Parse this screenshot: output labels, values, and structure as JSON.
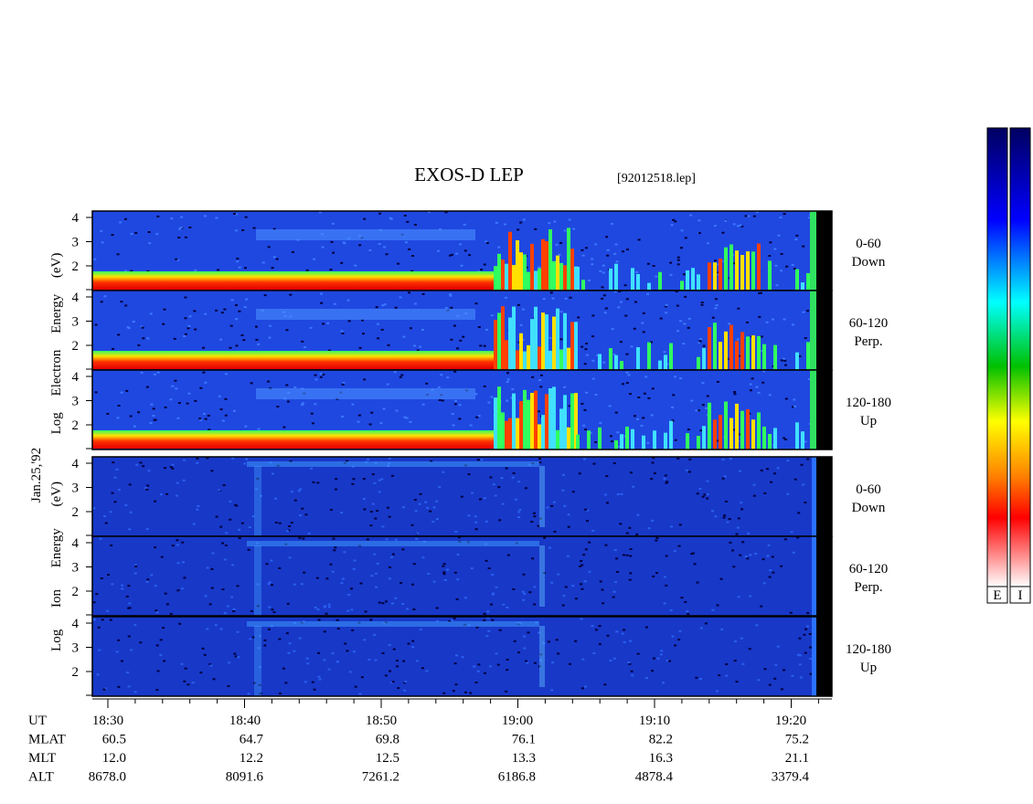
{
  "header": {
    "title": "EXOS-D LEP",
    "file": "[92012518.lep]"
  },
  "axes": {
    "electron_label": "Log Electron Energy (eV)",
    "ion_label": "Log Ion Energy (eV)",
    "date": "Jan.25,'92",
    "energy_ticks": [
      "2",
      "3",
      "4"
    ]
  },
  "electron_panels": [
    {
      "range": "0-60",
      "direction": "Down"
    },
    {
      "range": "60-120",
      "direction": "Perp."
    },
    {
      "range": "120-180",
      "direction": "Up"
    }
  ],
  "ion_panels": [
    {
      "range": "0-60",
      "direction": "Down"
    },
    {
      "range": "60-120",
      "direction": "Perp."
    },
    {
      "range": "120-180",
      "direction": "Up"
    }
  ],
  "time_axis": {
    "rows": [
      {
        "label": "UT",
        "values": [
          "18:30",
          "18:40",
          "18:50",
          "19:00",
          "19:10",
          "19:20"
        ]
      },
      {
        "label": "MLAT",
        "values": [
          "60.5",
          "64.7",
          "69.8",
          "76.1",
          "82.2",
          "75.2"
        ]
      },
      {
        "label": "MLT",
        "values": [
          "12.0",
          "12.2",
          "12.5",
          "13.3",
          "16.3",
          "21.1"
        ]
      },
      {
        "label": "ALT",
        "values": [
          "8678.0",
          "8091.6",
          "7261.2",
          "6186.8",
          "4878.4",
          "3379.4"
        ]
      }
    ]
  },
  "colorbar": {
    "labels": [
      "E",
      "I"
    ]
  }
}
